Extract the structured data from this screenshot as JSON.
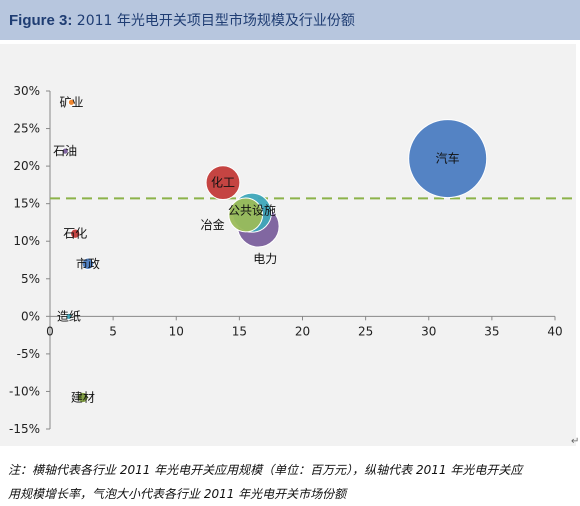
{
  "header": {
    "figure_label": "Figure 3:",
    "title": "2011 年光电开关项目型市场规模及行业份额"
  },
  "note": {
    "line1": "注：横轴代表各行业 2011 年光电开关应用规模（单位：百万元），纵轴代表 2011 年光电开关应",
    "line2": "用规模增长率，气泡大小代表各行业 2011 年光电开关市场份额"
  },
  "colors": {
    "title_bar": "#b7c6de",
    "plot_bg": "#f2f2f2",
    "reference_line": "#8cb34a"
  },
  "chart_data": {
    "type": "bubble",
    "x_ticks": [
      "0",
      "5",
      "10",
      "15",
      "20",
      "25",
      "30",
      "35",
      "40"
    ],
    "y_ticks": [
      "30%",
      "25%",
      "20%",
      "15%",
      "10%",
      "5%",
      "0%",
      "-5%",
      "-10%",
      "-15%"
    ],
    "xlim": [
      0,
      40
    ],
    "ylim": [
      -15,
      30
    ],
    "reference_line_y": 15.7,
    "bubbles": [
      {
        "label": "矿业",
        "x": 1.7,
        "y": 28.5,
        "size": 0.12,
        "color": "#ee7e23"
      },
      {
        "label": "石油",
        "x": 1.2,
        "y": 22.0,
        "size": 0.12,
        "color": "#7a5f9c"
      },
      {
        "label": "石化",
        "x": 2.0,
        "y": 11.0,
        "size": 0.18,
        "color": "#c23a38"
      },
      {
        "label": "市政",
        "x": 3.0,
        "y": 7.0,
        "size": 0.22,
        "color": "#4b7cc1"
      },
      {
        "label": "造纸",
        "x": 1.5,
        "y": 0.0,
        "size": 0.12,
        "color": "#3ea6b9"
      },
      {
        "label": "建材",
        "x": 2.6,
        "y": -10.8,
        "size": 0.2,
        "color": "#7d9c3c"
      },
      {
        "label": "化工",
        "x": 13.7,
        "y": 17.8,
        "size": 0.65,
        "color": "#c23a38"
      },
      {
        "label": "冶金",
        "x": 15.5,
        "y": 13.5,
        "size": 0.65,
        "color": "#9bbb59"
      },
      {
        "label": "电力",
        "x": 16.5,
        "y": 12.0,
        "size": 0.8,
        "color": "#7a5f9c"
      },
      {
        "label": "公共设施",
        "x": 16.0,
        "y": 13.8,
        "size": 0.75,
        "color": "#3ea6b9"
      },
      {
        "label": "汽车",
        "x": 31.5,
        "y": 21.0,
        "size": 1.5,
        "color": "#4b7cc1"
      }
    ]
  }
}
